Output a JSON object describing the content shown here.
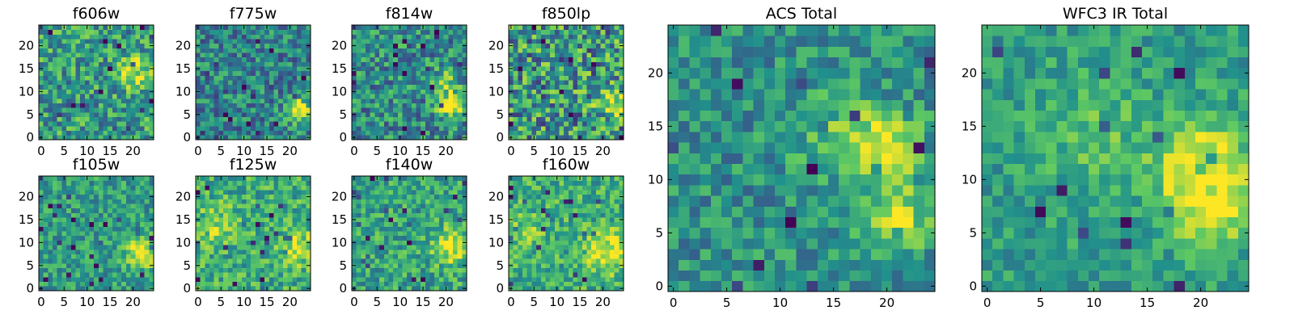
{
  "figure": {
    "description_free": true,
    "colormap": "viridis",
    "colormap_stops": [
      "#440154",
      "#3b528b",
      "#21918c",
      "#5ec962",
      "#fde725"
    ]
  },
  "chart_data": [
    {
      "id": "f606w",
      "type": "heatmap",
      "title": "f606w",
      "size": 25,
      "seed": 11,
      "xticks": [
        "0",
        "5",
        "10",
        "15",
        "20"
      ],
      "yticks": [
        "0",
        "5",
        "10",
        "15",
        "20"
      ],
      "blobs": [
        {
          "x": 20,
          "y": 14,
          "strength": 0.45,
          "sigma": 2.4
        }
      ],
      "noise": 0.28,
      "base": 0.55
    },
    {
      "id": "f775w",
      "type": "heatmap",
      "title": "f775w",
      "size": 25,
      "seed": 23,
      "xticks": [
        "0",
        "5",
        "10",
        "15",
        "20"
      ],
      "yticks": [
        "0",
        "5",
        "10",
        "15",
        "20"
      ],
      "blobs": [
        {
          "x": 22,
          "y": 6,
          "strength": 0.55,
          "sigma": 2.0
        }
      ],
      "noise": 0.25,
      "base": 0.45
    },
    {
      "id": "f814w",
      "type": "heatmap",
      "title": "f814w",
      "size": 25,
      "seed": 37,
      "xticks": [
        "0",
        "5",
        "10",
        "15",
        "20"
      ],
      "yticks": [
        "0",
        "5",
        "10",
        "15",
        "20"
      ],
      "blobs": [
        {
          "x": 21,
          "y": 7,
          "strength": 0.5,
          "sigma": 2.0
        },
        {
          "x": 20,
          "y": 12,
          "strength": 0.3,
          "sigma": 2.0
        }
      ],
      "noise": 0.27,
      "base": 0.48
    },
    {
      "id": "f850lp",
      "type": "heatmap",
      "title": "f850lp",
      "size": 25,
      "seed": 41,
      "xticks": [
        "0",
        "5",
        "10",
        "15",
        "20"
      ],
      "yticks": [
        "0",
        "5",
        "10",
        "15",
        "20"
      ],
      "blobs": [
        {
          "x": 22,
          "y": 7,
          "strength": 0.35,
          "sigma": 2.2
        }
      ],
      "noise": 0.36,
      "base": 0.52
    },
    {
      "id": "f105w",
      "type": "heatmap",
      "title": "f105w",
      "size": 25,
      "seed": 53,
      "xticks": [
        "0",
        "5",
        "10",
        "15",
        "20"
      ],
      "yticks": [
        "0",
        "5",
        "10",
        "15",
        "20"
      ],
      "blobs": [
        {
          "x": 22,
          "y": 8,
          "strength": 0.45,
          "sigma": 2.4
        }
      ],
      "noise": 0.2,
      "base": 0.55
    },
    {
      "id": "f125w",
      "type": "heatmap",
      "title": "f125w",
      "size": 25,
      "seed": 67,
      "xticks": [
        "0",
        "5",
        "10",
        "15",
        "20"
      ],
      "yticks": [
        "0",
        "5",
        "10",
        "15",
        "20"
      ],
      "blobs": [
        {
          "x": 22,
          "y": 9,
          "strength": 0.3,
          "sigma": 2.6
        },
        {
          "x": 4,
          "y": 14,
          "strength": 0.2,
          "sigma": 3.0
        }
      ],
      "noise": 0.22,
      "base": 0.62
    },
    {
      "id": "f140w",
      "type": "heatmap",
      "title": "f140w",
      "size": 25,
      "seed": 79,
      "xticks": [
        "0",
        "5",
        "10",
        "15",
        "20"
      ],
      "yticks": [
        "0",
        "5",
        "10",
        "15",
        "20"
      ],
      "blobs": [
        {
          "x": 21,
          "y": 9,
          "strength": 0.4,
          "sigma": 2.6
        }
      ],
      "noise": 0.22,
      "base": 0.58
    },
    {
      "id": "f160w",
      "type": "heatmap",
      "title": "f160w",
      "size": 25,
      "seed": 83,
      "xticks": [
        "0",
        "5",
        "10",
        "15",
        "20"
      ],
      "yticks": [
        "0",
        "5",
        "10",
        "15",
        "20"
      ],
      "blobs": [
        {
          "x": 21,
          "y": 8,
          "strength": 0.4,
          "sigma": 3.0
        },
        {
          "x": 3,
          "y": 13,
          "strength": 0.15,
          "sigma": 3.0
        }
      ],
      "noise": 0.22,
      "base": 0.62
    },
    {
      "id": "acs-total",
      "type": "heatmap",
      "title": "ACS Total",
      "size": 25,
      "seed": 97,
      "xticks": [
        "0",
        "5",
        "10",
        "15",
        "20"
      ],
      "yticks": [
        "0",
        "5",
        "10",
        "15",
        "20"
      ],
      "blobs": [
        {
          "x": 21,
          "y": 6,
          "strength": 0.5,
          "sigma": 2.0
        },
        {
          "x": 20,
          "y": 13,
          "strength": 0.45,
          "sigma": 2.2
        },
        {
          "x": 15,
          "y": 14,
          "strength": 0.2,
          "sigma": 3.0
        }
      ],
      "noise": 0.2,
      "base": 0.5
    },
    {
      "id": "wfc3-ir-total",
      "type": "heatmap",
      "title": "WFC3 IR Total",
      "size": 25,
      "seed": 101,
      "xticks": [
        "0",
        "5",
        "10",
        "15",
        "20"
      ],
      "yticks": [
        "0",
        "5",
        "10",
        "15",
        "20"
      ],
      "blobs": [
        {
          "x": 21,
          "y": 8,
          "strength": 0.45,
          "sigma": 2.8
        },
        {
          "x": 20,
          "y": 12,
          "strength": 0.3,
          "sigma": 3.0
        },
        {
          "x": 10,
          "y": 14,
          "strength": 0.15,
          "sigma": 4.0
        }
      ],
      "noise": 0.16,
      "base": 0.55
    }
  ]
}
